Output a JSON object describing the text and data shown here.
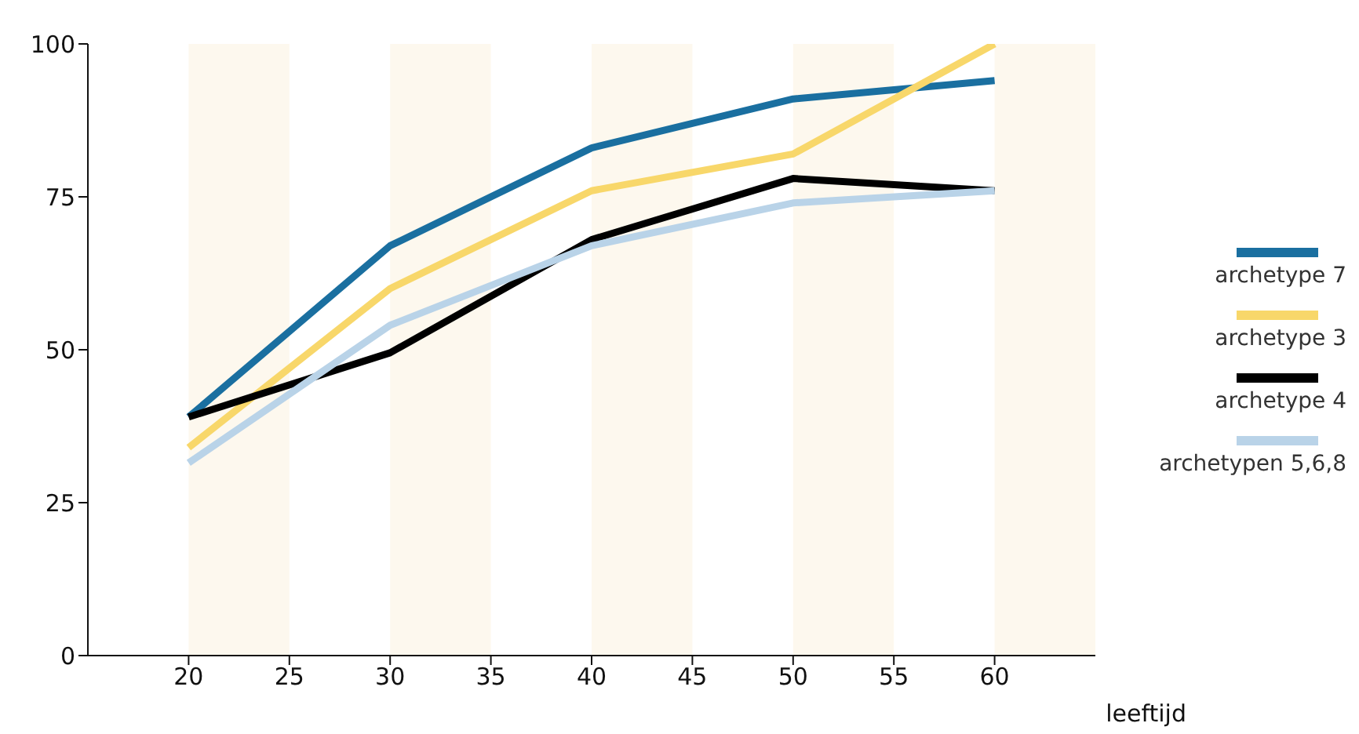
{
  "chart_data": {
    "type": "line",
    "xlabel": "leeftijd",
    "x": [
      20,
      30,
      40,
      50,
      60
    ],
    "series": [
      {
        "name": "archetype 7",
        "color": "#1a6fa0",
        "values": [
          39,
          67,
          83,
          91,
          94
        ]
      },
      {
        "name": "archetype 3",
        "color": "#f8d76a",
        "values": [
          34,
          60,
          76,
          82,
          100
        ]
      },
      {
        "name": "archetype 4",
        "color": "#000000",
        "values": [
          39,
          49.5,
          68,
          78,
          76
        ]
      },
      {
        "name": "archetypen 5,6,8",
        "color": "#b9d3e8",
        "values": [
          31.5,
          54,
          67,
          74,
          76
        ]
      }
    ],
    "xlim": [
      15,
      65
    ],
    "xticks": [
      20,
      25,
      30,
      35,
      40,
      45,
      50,
      55,
      60
    ],
    "ylim": [
      0,
      100
    ],
    "yticks": [
      0,
      25,
      50,
      75,
      100
    ],
    "bands": [
      {
        "axis": "x",
        "from": 20,
        "to": 25,
        "color": "#fdf8ee"
      },
      {
        "axis": "x",
        "from": 30,
        "to": 35,
        "color": "#fdf8ee"
      },
      {
        "axis": "x",
        "from": 40,
        "to": 45,
        "color": "#fdf8ee"
      },
      {
        "axis": "x",
        "from": 50,
        "to": 55,
        "color": "#fdf8ee"
      },
      {
        "axis": "x",
        "from": 60,
        "to": 65,
        "color": "#fdf8ee"
      }
    ],
    "grid": false,
    "legend": "right",
    "marker": "none",
    "line_style": "solid"
  }
}
